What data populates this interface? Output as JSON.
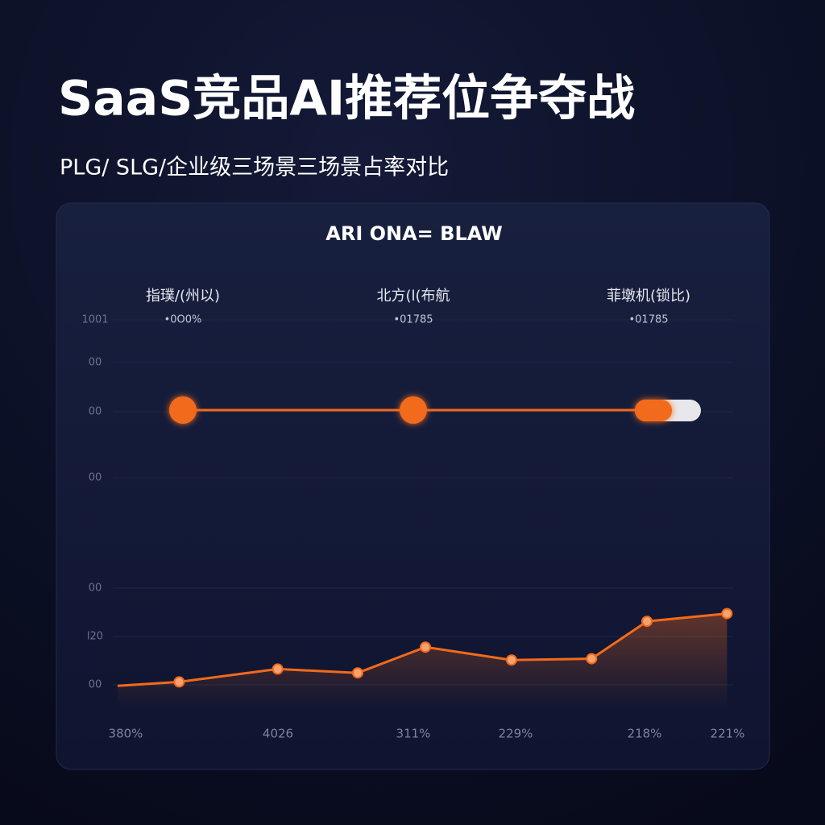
{
  "title": "SaaS竞品AI推荐位争夺战",
  "subtitle": "PLG/ SLG/企业级三场景三场景占率对比",
  "chart_data": {
    "type": "line",
    "title": "ARI ONA=  BLAW",
    "columns": [
      {
        "label": "指璞/(州以)",
        "value_text": "•0O0%"
      },
      {
        "label": "北方(l(布航",
        "value_text": "•01785"
      },
      {
        "label": "菲墩机(锁比)",
        "value_text": "•01785"
      }
    ],
    "y_labels": [
      "1001",
      "00",
      "00",
      "00",
      "00",
      "l20",
      "00"
    ],
    "x_labels": [
      "380%",
      "4026",
      "311%",
      "229%",
      "218%",
      "221%"
    ],
    "x": [
      0,
      10,
      26,
      39,
      50,
      64,
      77,
      86,
      99
    ],
    "values": [
      18,
      21,
      31,
      28,
      48,
      38,
      39,
      68,
      74
    ],
    "xlim": [
      0,
      100
    ],
    "ylim": [
      0,
      100
    ],
    "color": "#f26a1b"
  }
}
